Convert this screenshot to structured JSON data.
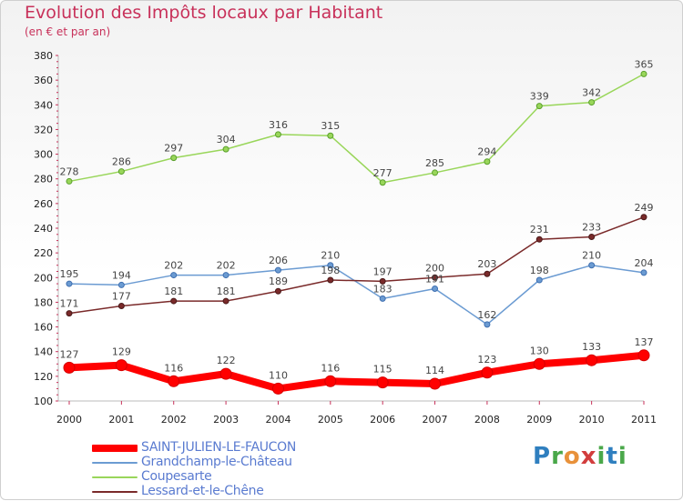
{
  "title": "Evolution des Impôts locaux par Habitant",
  "subtitle": "(en € et par an)",
  "brand": {
    "p": "P",
    "r": "r",
    "o": "o",
    "x": "x",
    "i": "i",
    "t": "t",
    "i2": "i"
  },
  "chart_data": {
    "type": "line",
    "title": "Evolution des Impôts locaux par Habitant",
    "subtitle": "(en € et par an)",
    "xlabel": "",
    "ylabel": "",
    "ylim": [
      100,
      380
    ],
    "yticks": [
      100,
      120,
      140,
      160,
      180,
      200,
      220,
      240,
      260,
      280,
      300,
      320,
      340,
      360,
      380
    ],
    "categories": [
      "2000",
      "2001",
      "2002",
      "2003",
      "2004",
      "2005",
      "2006",
      "2007",
      "2008",
      "2009",
      "2010",
      "2011"
    ],
    "grid": false,
    "legend_position": "bottom-left",
    "series": [
      {
        "name": "SAINT-JULIEN-LE-FAUCON",
        "color": "#ff0000",
        "values": [
          127,
          129,
          116,
          122,
          110,
          116,
          115,
          114,
          123,
          130,
          133,
          137
        ]
      },
      {
        "name": "Grandchamp-le-Château",
        "color": "#6b9bd2",
        "values": [
          195,
          194,
          202,
          202,
          206,
          210,
          183,
          191,
          162,
          198,
          210,
          204
        ]
      },
      {
        "name": "Coupesarte",
        "color": "#99d65a",
        "values": [
          278,
          286,
          297,
          304,
          316,
          315,
          277,
          285,
          294,
          339,
          342,
          365
        ]
      },
      {
        "name": "Lessard-et-le-Chêne",
        "color": "#7a2a2a",
        "values": [
          171,
          177,
          181,
          181,
          189,
          198,
          197,
          200,
          203,
          231,
          233,
          249
        ]
      }
    ]
  }
}
